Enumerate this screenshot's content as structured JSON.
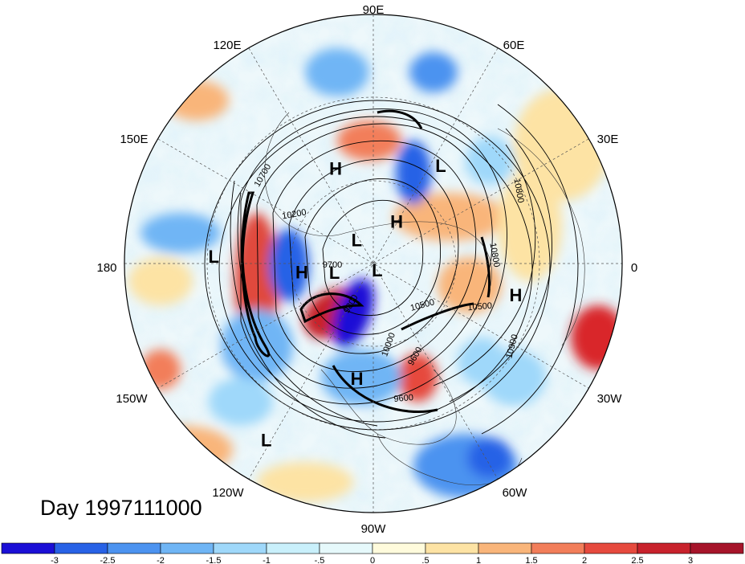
{
  "day_label": "Day 1997111000",
  "longitude_labels": [
    "90E",
    "60E",
    "30E",
    "0",
    "30W",
    "60W",
    "90W",
    "120W",
    "150W",
    "180",
    "150E",
    "120E"
  ],
  "pressure_centers": [
    {
      "name": "L",
      "lon": 55,
      "lat": 22
    },
    {
      "name": "H",
      "lon": 112,
      "lat": 30
    },
    {
      "name": "H",
      "lon": 60,
      "lat": 60
    },
    {
      "name": "L",
      "lon": 178,
      "lat": 5
    },
    {
      "name": "L",
      "lon": 127,
      "lat": 72
    },
    {
      "name": "L",
      "lon": -165,
      "lat": 64
    },
    {
      "name": "L",
      "lon": -65,
      "lat": 84
    },
    {
      "name": "H",
      "lon": -172,
      "lat": 45
    },
    {
      "name": "H",
      "lon": -13,
      "lat": 10
    },
    {
      "name": "H",
      "lon": -98,
      "lat": 22
    },
    {
      "name": "L",
      "lon": -121,
      "lat": -10
    }
  ],
  "contour_labels": [
    "10700",
    "10200",
    "9700",
    "10800",
    "10800",
    "10500",
    "10900",
    "10000",
    "9600",
    "10500",
    "9800",
    "9600"
  ],
  "colorbar": {
    "colors": [
      "#1b0fd6",
      "#2862e6",
      "#4c93f0",
      "#6fb5f5",
      "#9fd8fa",
      "#c9f0fb",
      "#e6f9fb",
      "#fffbdc",
      "#fde3a4",
      "#f9b57a",
      "#f27e5a",
      "#e64a3e",
      "#c8222c",
      "#a6142a"
    ],
    "ticks": [
      "-3",
      "-2.5",
      "-2",
      "-1.5",
      "-1",
      "-.5",
      "0",
      ".5",
      "1",
      "1.5",
      "2",
      "2.5",
      "3"
    ]
  }
}
